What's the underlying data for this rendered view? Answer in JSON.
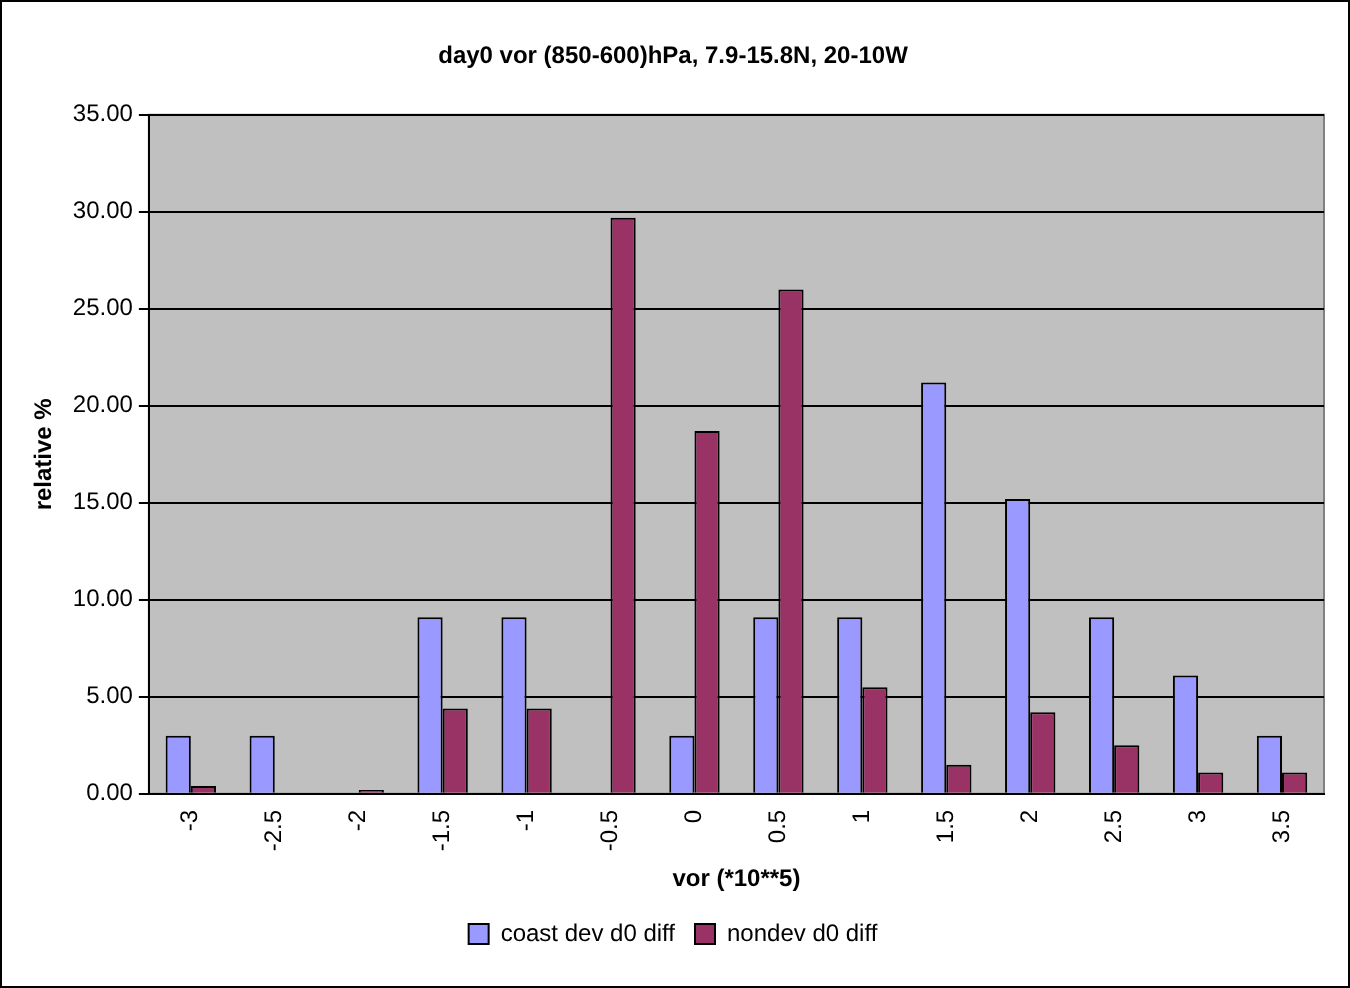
{
  "chart_data": {
    "type": "bar",
    "title": "day0 vor (850-600)hPa, 7.9-15.8N, 20-10W",
    "xlabel": "vor (*10**5)",
    "ylabel": "relative %",
    "categories": [
      "-3",
      "-2.5",
      "-2",
      "-1.5",
      "-1",
      "-0.5",
      "0",
      "0.5",
      "1",
      "1.5",
      "2",
      "2.5",
      "3",
      "3.5"
    ],
    "series": [
      {
        "name": "coast dev d0 diff",
        "color": "#9999ff",
        "values": [
          3.0,
          3.0,
          0,
          9.1,
          9.1,
          0,
          3.0,
          9.1,
          9.1,
          21.2,
          15.2,
          9.1,
          6.1,
          3.0
        ]
      },
      {
        "name": "nondev d0 diff",
        "color": "#993366",
        "values": [
          0.4,
          0,
          0.2,
          4.4,
          4.4,
          29.7,
          18.7,
          26.0,
          5.5,
          1.5,
          4.2,
          2.5,
          1.1,
          1.1
        ]
      }
    ],
    "ylim": [
      0,
      35
    ],
    "yticks": [
      {
        "value": 0,
        "label": "0.00"
      },
      {
        "value": 5,
        "label": "5.00"
      },
      {
        "value": 10,
        "label": "10.00"
      },
      {
        "value": 15,
        "label": "15.00"
      },
      {
        "value": 20,
        "label": "20.00"
      },
      {
        "value": 25,
        "label": "25.00"
      },
      {
        "value": 30,
        "label": "30.00"
      },
      {
        "value": 35,
        "label": "35.00"
      }
    ],
    "grid": "y",
    "legend": "bottom"
  }
}
